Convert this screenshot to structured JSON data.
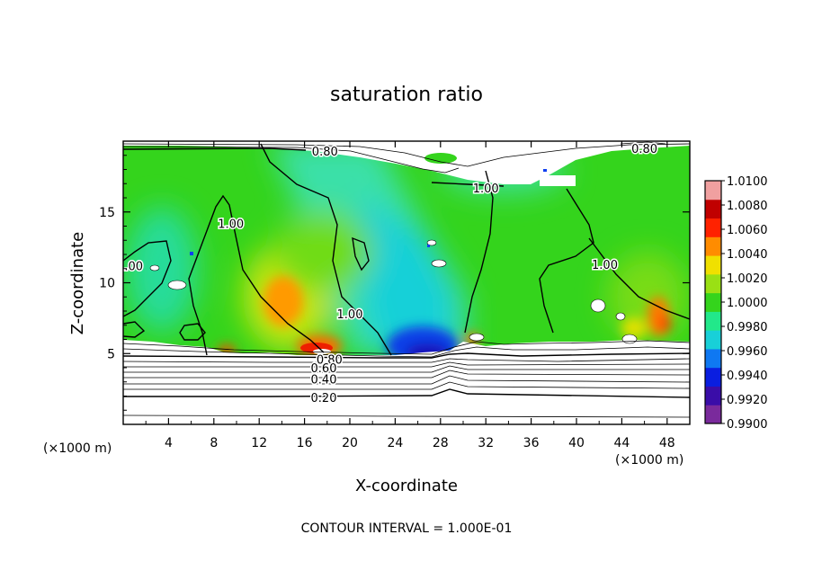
{
  "chart_data": {
    "type": "heatmap",
    "title": "saturation ratio",
    "xlabel": "X-coordinate",
    "ylabel": "Z-coordinate",
    "x_unit_left": "(×1000 m)",
    "x_unit_right": "(×1000 m)",
    "xlim": [
      0,
      50
    ],
    "ylim": [
      0,
      20
    ],
    "x_ticks": [
      4,
      8,
      12,
      16,
      20,
      24,
      28,
      32,
      36,
      40,
      44,
      48
    ],
    "y_ticks": [
      5,
      10,
      15
    ],
    "footer": "CONTOUR INTERVAL = 1.000E-01",
    "colorbar": {
      "range": [
        0.99,
        1.01
      ],
      "ticks": [
        "0.9900",
        "0.9920",
        "0.9940",
        "0.9960",
        "0.9980",
        "1.0000",
        "1.0020",
        "1.0040",
        "1.0060",
        "1.0080",
        "1.0100"
      ],
      "colors": [
        "#7a2a9c",
        "#3a0da8",
        "#0a1ee0",
        "#0f78f2",
        "#18d0d8",
        "#22e88a",
        "#34d41c",
        "#9ae014",
        "#f0e000",
        "#ff8c00",
        "#ff2200",
        "#c00000",
        "#f0a0a0"
      ]
    },
    "contour_labels": [
      {
        "text": "0.80",
        "x": 17.8,
        "z": 19.3
      },
      {
        "text": "0.80",
        "x": 46.0,
        "z": 19.5
      },
      {
        "text": "1.00",
        "x": 32.0,
        "z": 16.7
      },
      {
        "text": "1.00",
        "x": 9.5,
        "z": 14.2
      },
      {
        "text": "1.00",
        "x": 0.6,
        "z": 11.2
      },
      {
        "text": "1.00",
        "x": 20.0,
        "z": 7.8
      },
      {
        "text": "1.00",
        "x": 42.5,
        "z": 11.3
      },
      {
        "text": "0.80",
        "x": 18.2,
        "z": 4.6
      },
      {
        "text": "0.60",
        "x": 17.7,
        "z": 4.0
      },
      {
        "text": "0.40",
        "x": 17.7,
        "z": 3.2
      },
      {
        "text": "0.20",
        "x": 17.7,
        "z": 1.9
      }
    ]
  }
}
